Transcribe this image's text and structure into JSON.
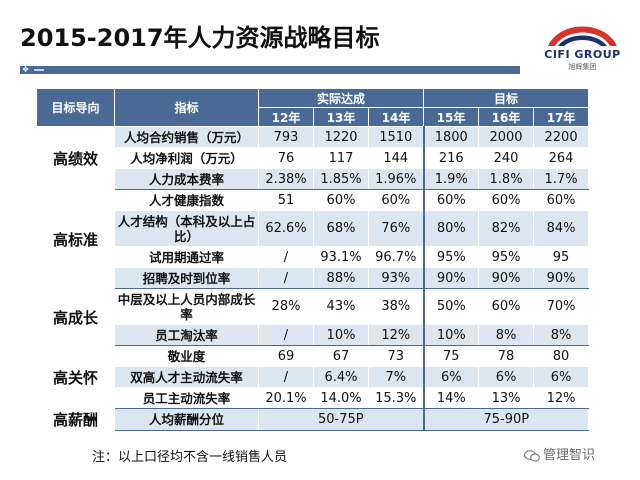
{
  "title": "2015-2017年人力资源战略目标",
  "logo": {
    "main": "CIFI GROUP",
    "sub": "旭辉集团"
  },
  "table": {
    "headers": {
      "dimension": "目标导向",
      "indicator": "指标",
      "actual": "实际达成",
      "target": "目标"
    },
    "years": [
      "12年",
      "13年",
      "14年",
      "15年",
      "16年",
      "17年"
    ],
    "groups": [
      {
        "name": "高绩效",
        "rows": [
          {
            "indicator": "人均合约销售（万元）",
            "values": [
              "793",
              "1220",
              "1510",
              "1800",
              "2000",
              "2200"
            ]
          },
          {
            "indicator": "人均净利润（万元）",
            "values": [
              "76",
              "117",
              "144",
              "216",
              "240",
              "264"
            ]
          },
          {
            "indicator": "人力成本费率",
            "values": [
              "2.38%",
              "1.85%",
              "1.96%",
              "1.9%",
              "1.8%",
              "1.7%"
            ]
          }
        ]
      },
      {
        "name": "高标准",
        "rows": [
          {
            "indicator": "人才健康指数",
            "values": [
              "51",
              "60%",
              "60%",
              "60%",
              "60%",
              "60%"
            ]
          },
          {
            "indicator": "人才结构（本科及以上占比）",
            "values": [
              "62.6%",
              "68%",
              "76%",
              "80%",
              "82%",
              "84%"
            ]
          },
          {
            "indicator": "试用期通过率",
            "values": [
              "/",
              "93.1%",
              "96.7%",
              "95%",
              "95%",
              "95"
            ]
          },
          {
            "indicator": "招聘及时到位率",
            "values": [
              "/",
              "88%",
              "93%",
              "90%",
              "90%",
              "90%"
            ]
          }
        ]
      },
      {
        "name": "高成长",
        "rows": [
          {
            "indicator": "中层及以上人员内部成长率",
            "values": [
              "28%",
              "43%",
              "38%",
              "50%",
              "60%",
              "70%"
            ]
          },
          {
            "indicator": "员工淘汰率",
            "values": [
              "/",
              "10%",
              "12%",
              "10%",
              "8%",
              "8%"
            ]
          }
        ]
      },
      {
        "name": "高关怀",
        "rows": [
          {
            "indicator": "敬业度",
            "values": [
              "69",
              "67",
              "73",
              "75",
              "78",
              "80"
            ]
          },
          {
            "indicator": "双高人才主动流失率",
            "values": [
              "/",
              "6.4%",
              "7%",
              "6%",
              "6%",
              "6%"
            ]
          },
          {
            "indicator": "员工主动流失率",
            "values": [
              "20.1%",
              "14.0%",
              "15.3%",
              "14%",
              "13%",
              "12%"
            ]
          }
        ]
      },
      {
        "name": "高薪酬",
        "rows": [
          {
            "indicator": "人均薪酬分位",
            "actual_merged": "50-75P",
            "target_merged": "75-90P"
          }
        ]
      }
    ]
  },
  "note": "注：以上口径均不含一线销售人员",
  "watermark": "管理智识",
  "colors": {
    "header": "#4a6a95",
    "stripe": "#dce6f1",
    "logo_red": "#d9312b",
    "logo_navy": "#1f2f6b"
  }
}
